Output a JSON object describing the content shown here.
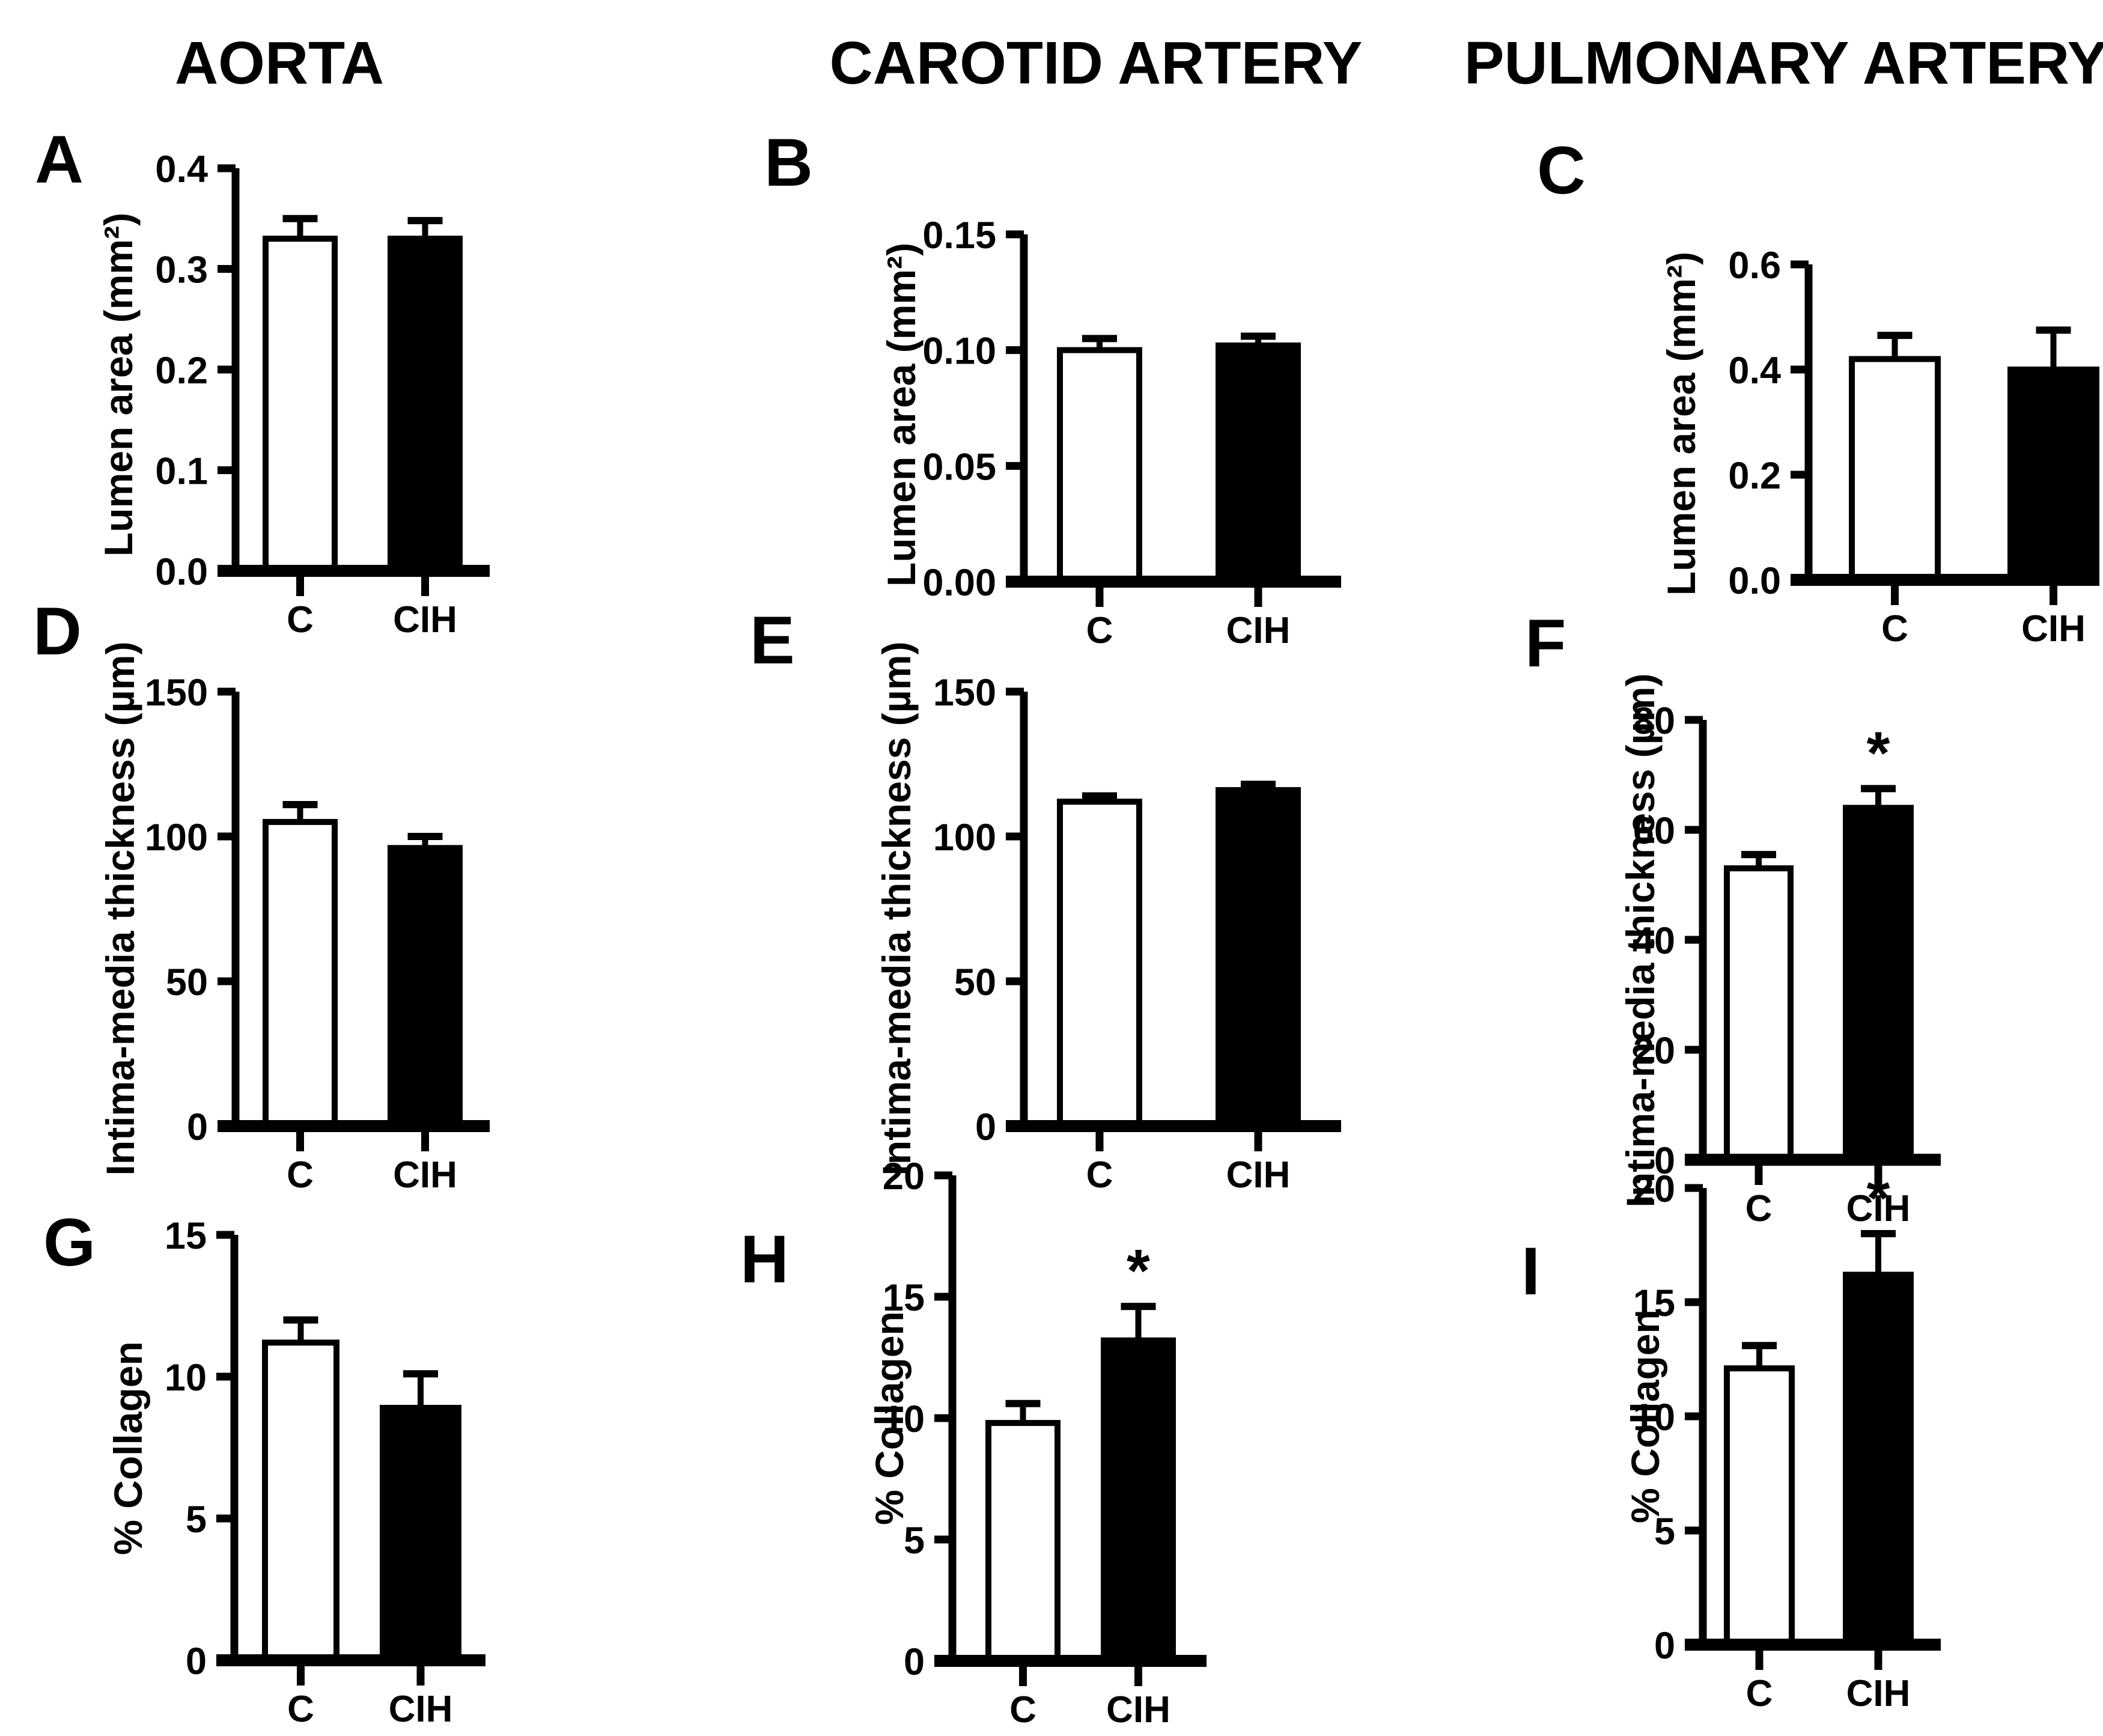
{
  "figure": {
    "column_titles": [
      "AORTA",
      "CAROTID ARTERY",
      "PULMONARY ARTERY"
    ],
    "significance_symbol": "*",
    "colors": {
      "background": "#ffffff",
      "ink": "#000000",
      "control_fill": "#ffffff",
      "cih_fill": "#000000"
    }
  },
  "chart_data": [
    {
      "id": "A",
      "panel_letter": "A",
      "type": "bar",
      "column": "AORTA",
      "ylabel": "Lumen area (mm²)",
      "categories": [
        "C",
        "CIH"
      ],
      "values": [
        0.33,
        0.33
      ],
      "errors": [
        0.02,
        0.018
      ],
      "significant": [
        false,
        false
      ],
      "ylim": [
        0,
        0.4
      ],
      "yticks": [
        0,
        0.1,
        0.2,
        0.3,
        0.4
      ],
      "ytick_labels": [
        "0.0",
        "0.1",
        "0.2",
        "0.3",
        "0.4"
      ],
      "bar_fills": [
        "#ffffff",
        "#000000"
      ]
    },
    {
      "id": "B",
      "panel_letter": "B",
      "type": "bar",
      "column": "CAROTID ARTERY",
      "ylabel": "Lumen area (mm²)",
      "categories": [
        "C",
        "CIH"
      ],
      "values": [
        0.1,
        0.102
      ],
      "errors": [
        0.005,
        0.004
      ],
      "significant": [
        false,
        false
      ],
      "ylim": [
        0,
        0.15
      ],
      "yticks": [
        0,
        0.05,
        0.1,
        0.15
      ],
      "ytick_labels": [
        "0.00",
        "0.05",
        "0.10",
        "0.15"
      ],
      "bar_fills": [
        "#ffffff",
        "#000000"
      ]
    },
    {
      "id": "C",
      "panel_letter": "C",
      "type": "bar",
      "column": "PULMONARY ARTERY",
      "ylabel": "Lumen area (mm²)",
      "categories": [
        "C",
        "CIH"
      ],
      "values": [
        0.42,
        0.4
      ],
      "errors": [
        0.045,
        0.075
      ],
      "significant": [
        false,
        false
      ],
      "ylim": [
        0,
        0.6
      ],
      "yticks": [
        0,
        0.2,
        0.4,
        0.6
      ],
      "ytick_labels": [
        "0.0",
        "0.2",
        "0.4",
        "0.6"
      ],
      "bar_fills": [
        "#ffffff",
        "#000000"
      ]
    },
    {
      "id": "D",
      "panel_letter": "D",
      "type": "bar",
      "column": "AORTA",
      "ylabel": "Intima-media thickness (µm)",
      "categories": [
        "C",
        "CIH"
      ],
      "values": [
        105,
        96
      ],
      "errors": [
        6,
        4
      ],
      "significant": [
        false,
        false
      ],
      "ylim": [
        0,
        150
      ],
      "yticks": [
        0,
        50,
        100,
        150
      ],
      "ytick_labels": [
        "0",
        "50",
        "100",
        "150"
      ],
      "bar_fills": [
        "#ffffff",
        "#000000"
      ]
    },
    {
      "id": "E",
      "panel_letter": "E",
      "type": "bar",
      "column": "CAROTID ARTERY",
      "ylabel": "Intima-media thickness (µm)",
      "categories": [
        "C",
        "CIH"
      ],
      "values": [
        112,
        116
      ],
      "errors": [
        2,
        2
      ],
      "significant": [
        false,
        false
      ],
      "ylim": [
        0,
        150
      ],
      "yticks": [
        0,
        50,
        100,
        150
      ],
      "ytick_labels": [
        "0",
        "50",
        "100",
        "150"
      ],
      "bar_fills": [
        "#ffffff",
        "#000000"
      ]
    },
    {
      "id": "F",
      "panel_letter": "F",
      "type": "bar",
      "column": "PULMONARY ARTERY",
      "ylabel": "Intima-media thickness (µm)",
      "categories": [
        "C",
        "CIH"
      ],
      "values": [
        53,
        64
      ],
      "errors": [
        2.5,
        3.5
      ],
      "significant": [
        false,
        true
      ],
      "ylim": [
        0,
        80
      ],
      "yticks": [
        0,
        20,
        40,
        60,
        80
      ],
      "ytick_labels": [
        "0",
        "20",
        "40",
        "60",
        "80"
      ],
      "bar_fills": [
        "#ffffff",
        "#000000"
      ]
    },
    {
      "id": "G",
      "panel_letter": "G",
      "type": "bar",
      "column": "AORTA",
      "ylabel": "% Collagen",
      "categories": [
        "C",
        "CIH"
      ],
      "values": [
        11.2,
        8.9
      ],
      "errors": [
        0.8,
        1.2
      ],
      "significant": [
        false,
        false
      ],
      "ylim": [
        0,
        15
      ],
      "yticks": [
        0,
        5,
        10,
        15
      ],
      "ytick_labels": [
        "0",
        "5",
        "10",
        "15"
      ],
      "bar_fills": [
        "#ffffff",
        "#000000"
      ]
    },
    {
      "id": "H",
      "panel_letter": "H",
      "type": "bar",
      "column": "CAROTID ARTERY",
      "ylabel": "% Collagen",
      "categories": [
        "C",
        "CIH"
      ],
      "values": [
        9.8,
        13.2
      ],
      "errors": [
        0.8,
        1.4
      ],
      "significant": [
        false,
        true
      ],
      "ylim": [
        0,
        20
      ],
      "yticks": [
        0,
        5,
        10,
        15,
        20
      ],
      "ytick_labels": [
        "0",
        "5",
        "10",
        "15",
        "20"
      ],
      "bar_fills": [
        "#ffffff",
        "#000000"
      ]
    },
    {
      "id": "I",
      "panel_letter": "I",
      "type": "bar",
      "column": "PULMONARY ARTERY",
      "ylabel": "% Collagen",
      "categories": [
        "C",
        "CIH"
      ],
      "values": [
        12.1,
        16.2
      ],
      "errors": [
        1.0,
        1.8
      ],
      "significant": [
        false,
        true
      ],
      "ylim": [
        0,
        20
      ],
      "yticks": [
        0,
        5,
        10,
        15,
        20
      ],
      "ytick_labels": [
        "0",
        "5",
        "10",
        "15",
        "20"
      ],
      "bar_fills": [
        "#ffffff",
        "#000000"
      ]
    }
  ]
}
